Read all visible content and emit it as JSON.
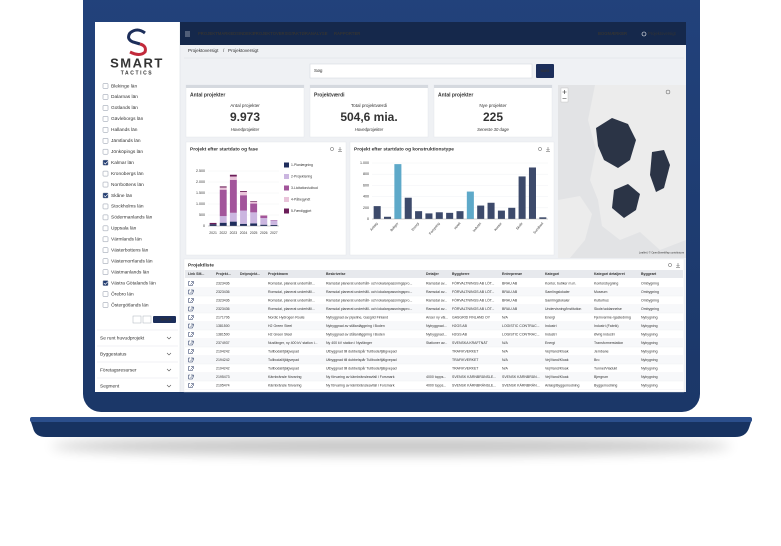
{
  "brand": {
    "name": "SMART",
    "tagline": "TACTICS"
  },
  "sidebar": {
    "regions": [
      {
        "label": "Blekinge län"
      },
      {
        "label": "Dalarnas län"
      },
      {
        "label": "Gotlands län"
      },
      {
        "label": "Gävleborgs län"
      },
      {
        "label": "Hallands län"
      },
      {
        "label": "Jämtlands län"
      },
      {
        "label": "Jönköpings län"
      },
      {
        "label": "Kalmar län",
        "checked": true
      },
      {
        "label": "Kronobergs län"
      },
      {
        "label": "Norrbottens län"
      },
      {
        "label": "Skåne län",
        "checked": true
      },
      {
        "label": "Stockholms län"
      },
      {
        "label": "Södermanlands län"
      },
      {
        "label": "Uppsala län"
      },
      {
        "label": "Värmlands län"
      },
      {
        "label": "Västerbottens län"
      },
      {
        "label": "Västernorrlands län"
      },
      {
        "label": "Västmanlands län"
      },
      {
        "label": "Västra Götalands län",
        "checked": true
      },
      {
        "label": "Örebro län"
      },
      {
        "label": "Östergötlands län"
      }
    ],
    "apply": "BRUK",
    "sections": [
      "Se runt huvudprojekt",
      "Byggestatus",
      "Företagsresurser",
      "Segment"
    ]
  },
  "nav": {
    "items": [
      "PROJEKTMARKEDSINDEKS",
      "PROJEKTOVERSIGT",
      "AKTØRANALYSE",
      "RAPPORTER"
    ],
    "active": 1,
    "right": [
      "BOGMÆRKER",
      "Projektoversigt"
    ]
  },
  "breadcrumb": [
    "Projektoversigt",
    "Projektoversigt"
  ],
  "search": {
    "placeholder": "Søg",
    "button": "SØG"
  },
  "kpis": [
    {
      "title": "Antal projekter",
      "label": "Antal projekter",
      "value": "9.973",
      "note": "Hovedprojekter"
    },
    {
      "title": "Projektværdi",
      "label": "Total projektværdi",
      "value": "504,6 mia.",
      "note": "Hovedprojekter"
    },
    {
      "title": "Antal projekter",
      "label": "Nye projekter",
      "value": "225",
      "note": "Seneste 30 dage"
    }
  ],
  "chart_data": [
    {
      "type": "bar",
      "stacked": true,
      "title": "Projekt efter startdato og fase",
      "categories": [
        "2021",
        "2022",
        "2023",
        "2024",
        "2025",
        "2026",
        "2027"
      ],
      "series": [
        {
          "name": "1-Planlægning",
          "color": "#1f2d5c",
          "values": [
            80,
            150,
            200,
            100,
            120,
            60,
            50
          ]
        },
        {
          "name": "2-Projektering",
          "color": "#cbb6e0",
          "values": [
            0,
            300,
            400,
            600,
            500,
            300,
            200
          ]
        },
        {
          "name": "3-Licitation/udbud",
          "color": "#a2559b",
          "values": [
            0,
            1200,
            1500,
            700,
            400,
            100,
            20
          ]
        },
        {
          "name": "4-Påbegyndt",
          "color": "#e9c4da",
          "values": [
            0,
            100,
            150,
            150,
            80,
            30,
            0
          ]
        },
        {
          "name": "5-Færdiggjort",
          "color": "#6b1d58",
          "values": [
            60,
            50,
            80,
            40,
            30,
            10,
            0
          ]
        }
      ],
      "ylim": [
        0,
        2500
      ],
      "yticks": [
        0,
        500,
        {
          "value": 1000,
          "label": "1.000"
        },
        {
          "value": 1500,
          "label": "1.500"
        },
        {
          "value": 2000,
          "label": "2.000"
        },
        {
          "value": 2500,
          "label": "2.500"
        }
      ],
      "grid": true,
      "legend": "right"
    },
    {
      "type": "bar",
      "title": "Projekt efter startdato og konstruktionstype",
      "categories": [
        "Anlæg",
        null,
        "Boliger",
        null,
        "Energi",
        null,
        "Forsyning",
        null,
        "Hotel",
        null,
        "Industri",
        null,
        "Kontor",
        null,
        "Skole",
        null,
        "Sundhed"
      ],
      "values": [
        230,
        40,
        980,
        380,
        140,
        100,
        120,
        110,
        140,
        490,
        240,
        290,
        150,
        200,
        760,
        920,
        30
      ],
      "colors": [
        "#3d4a6b",
        "#3d4a6b",
        "#5ea9c9",
        "#3d4a6b",
        "#3d4a6b",
        "#3d4a6b",
        "#3d4a6b",
        "#3d4a6b",
        "#3d4a6b",
        "#5ea9c9",
        "#3d4a6b",
        "#3d4a6b",
        "#3d4a6b",
        "#3d4a6b",
        "#3d4a6b",
        "#3d4a6b",
        "#3d4a6b"
      ],
      "ylim": [
        0,
        1000
      ],
      "yticks": [
        0,
        200,
        400,
        600,
        800,
        {
          "value": 1000,
          "label": "1.000"
        }
      ],
      "grid": true
    }
  ],
  "map": {
    "attribution": "Leaflet | © OpenStreetMap contributors"
  },
  "table": {
    "title": "Projektliste",
    "columns": [
      "Link SM...",
      "Projekt...",
      "Delprojekt...",
      "Projektnavn",
      "Beskrivelse",
      "Detaljer",
      "Byggherre",
      "Entreprenør",
      "Kategori",
      "Kategori detaljeret",
      "Byggeart"
    ],
    "rows": [
      [
        null,
        "2323436",
        null,
        "Romsdal, planerat underhåll...",
        "Ramsdal planerat underhåll- och lokalanpassningspro...",
        "Ramsdal av...",
        "FÖRVALTNINGS AB LÖT...",
        "BRAU AB",
        "Kontor, butiker m.m.",
        "Kontorsbygning",
        "Ombygning"
      ],
      [
        null,
        "2323436",
        null,
        "Romsdal, planerat underhåll...",
        "Ramsdal planerat underhåll- och lokalanpassningspro...",
        "Ramsdal av...",
        "FÖRVALTNINGS AB LÖT...",
        "BRAU AB",
        "Samlingslokaler",
        "Museum",
        "Ombygning"
      ],
      [
        null,
        "2323436",
        null,
        "Romsdal, planerat underhåll...",
        "Ramsdal planerat underhåll- och lokalanpassningspro...",
        "Ramsdal av...",
        "FÖRVALTNINGS AB LÖT...",
        "BRAU AB",
        "Samlingslokaler",
        "Kulturhus",
        "Ombygning"
      ],
      [
        null,
        "2323436",
        null,
        "Romsdal, planerat underhåll...",
        "Ramsdal planerat underhåll- och lokalanpassningspro...",
        "Ramsdal av...",
        "FÖRVALTNINGS AB LÖT...",
        "BRAU AB",
        "Undervisning/Institution",
        "Skole/uddannelse",
        "Ombygning"
      ],
      [
        null,
        "2171706",
        null,
        "Nordic Hydrogen Route",
        "Nybyggnad av pipeline, Gasgrid Finland",
        "Anser ny väl...",
        "GASGRID FINLAND OY",
        "N/A",
        "Energi",
        "Fjernvarme-/gasledning",
        "Nybygning"
      ],
      [
        null,
        "1381500",
        null,
        "H2 Green Steel",
        "Nybyggnad av stålanläggning i Boden",
        "Nybyggnad...",
        "H2GS AB",
        "LOGISTIC CONTRAC...",
        "Industri",
        "Industri (Fabrik)",
        "Nybygning"
      ],
      [
        null,
        "1381500",
        null,
        "H2 Green Steel",
        "Nybyggnad av stålanläggning i Boden",
        "Nybyggnad...",
        "H2GS AB",
        "LOGISTIC CONTRAC...",
        "Industri",
        "Øvrig industri",
        "Nybygning"
      ],
      [
        null,
        "2374937",
        null,
        "Nusfänger, ny 400 kV station i...",
        "Ny 400 kV station i Nysfänger",
        "Stationer av...",
        "SVENSKA KRAFTNÄT",
        "N/A",
        "Energi",
        "Transformerstation",
        "Nybygning"
      ],
      [
        null,
        "2194242",
        null,
        "Tullbodal/tjälgvepad",
        "Utbyggnad till dubbelspår Tullbode/tjälgvepad",
        null,
        "TRAFIKVERKET",
        "N/A",
        "Vej/Vand/Kloak",
        "Jernbane",
        "Nybygning"
      ],
      [
        null,
        "2194242",
        null,
        "Tullbodal/tjälgvepad",
        "Utbyggnad till dubbelspår Tullbode/tjälgvepad",
        null,
        "TRAFIKVERKET",
        "N/A",
        "Vej/Vand/Kloak",
        "Bro",
        "Nybygning"
      ],
      [
        null,
        "2194242",
        null,
        "Tullbodal/tjälgvepad",
        "Utbyggnad till dubbelspår Tullbode/tjälgvepad",
        null,
        "TRAFIKVERKET",
        "N/A",
        "Vej/Vand/Kloak",
        "Tunnel/Viadukt",
        "Nybygning"
      ],
      [
        null,
        "2195473",
        null,
        "Kärnbränsle förvaring",
        "Ny förvaring av kärnbränsleavfall i Forsmark",
        "4000 topps...",
        "SVENSK KÄRNBRÄNSLE...",
        "SVENSK KÄRNBRÄN...",
        "Vej/Vand/Kloak",
        "Bjergrum",
        "Nybygning"
      ],
      [
        null,
        "2195474",
        null,
        "Kärnbränsle förvaring",
        "Ny förvaring av kärnbränsleavfall i Forsmark",
        "4000 topps...",
        "SVENSK KÄRNBRÄNSLE...",
        "SVENSK KÄRNBRÄN...",
        "Anlæg/Byggemodning",
        "Byggemodning",
        "Nybygning"
      ]
    ]
  }
}
